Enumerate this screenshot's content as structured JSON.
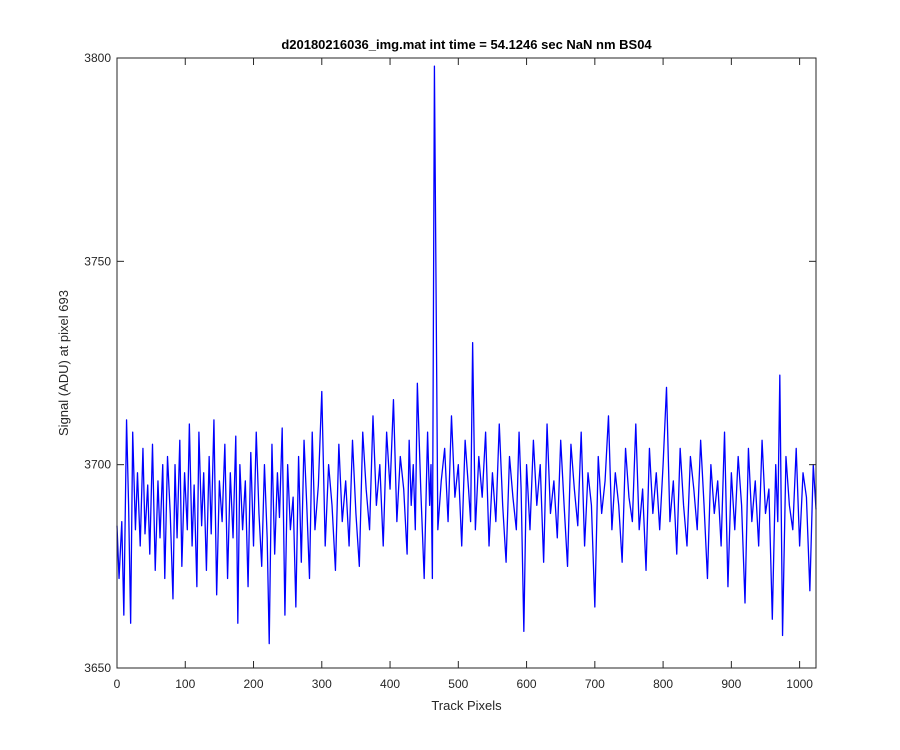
{
  "chart_data": {
    "type": "line",
    "title": "d20180216036_img.mat int time = 54.1246 sec  NaN nm BS04",
    "xlabel": "Track Pixels",
    "ylabel": "Signal (ADU) at pixel 693",
    "xlim": [
      0,
      1024
    ],
    "ylim": [
      3650,
      3800
    ],
    "xticks": [
      0,
      100,
      200,
      300,
      400,
      500,
      600,
      700,
      800,
      900,
      1000
    ],
    "yticks": [
      3650,
      3700,
      3750,
      3800
    ],
    "grid": false,
    "series": [
      {
        "color": "#0000ff",
        "x": [
          0,
          3,
          7,
          10,
          14,
          17,
          20,
          23,
          27,
          30,
          34,
          38,
          41,
          45,
          48,
          52,
          56,
          60,
          63,
          67,
          70,
          74,
          78,
          82,
          85,
          88,
          92,
          95,
          99,
          103,
          106,
          110,
          113,
          117,
          120,
          124,
          127,
          131,
          135,
          138,
          142,
          146,
          150,
          154,
          158,
          162,
          166,
          170,
          174,
          177,
          180,
          184,
          188,
          192,
          196,
          200,
          204,
          208,
          212,
          216,
          220,
          223,
          227,
          231,
          235,
          238,
          242,
          246,
          250,
          254,
          258,
          262,
          266,
          270,
          274,
          278,
          282,
          286,
          290,
          295,
          300,
          305,
          310,
          315,
          320,
          325,
          330,
          335,
          340,
          345,
          350,
          355,
          360,
          365,
          370,
          375,
          380,
          385,
          390,
          395,
          400,
          405,
          410,
          415,
          420,
          425,
          428,
          431,
          434,
          437,
          440,
          445,
          450,
          455,
          458,
          460,
          462,
          465,
          470,
          475,
          480,
          485,
          490,
          495,
          500,
          505,
          510,
          515,
          518,
          521,
          525,
          530,
          535,
          540,
          545,
          550,
          555,
          560,
          565,
          570,
          575,
          580,
          585,
          589,
          592,
          596,
          600,
          605,
          610,
          615,
          620,
          625,
          630,
          635,
          640,
          645,
          650,
          655,
          660,
          665,
          670,
          675,
          680,
          685,
          690,
          695,
          700,
          705,
          710,
          715,
          720,
          725,
          730,
          735,
          740,
          745,
          750,
          755,
          760,
          765,
          770,
          775,
          780,
          785,
          790,
          795,
          800,
          805,
          810,
          815,
          820,
          825,
          830,
          835,
          840,
          845,
          850,
          855,
          860,
          865,
          870,
          875,
          880,
          885,
          890,
          895,
          900,
          905,
          910,
          915,
          920,
          925,
          930,
          935,
          940,
          945,
          950,
          955,
          960,
          965,
          968,
          971,
          975,
          980,
          985,
          990,
          995,
          1000,
          1005,
          1010,
          1015,
          1020,
          1024
        ],
        "y": [
          3685,
          3672,
          3686,
          3663,
          3711,
          3690,
          3661,
          3708,
          3684,
          3698,
          3680,
          3704,
          3683,
          3695,
          3678,
          3705,
          3674,
          3696,
          3682,
          3700,
          3672,
          3702,
          3688,
          3667,
          3700,
          3682,
          3706,
          3675,
          3698,
          3684,
          3710,
          3680,
          3695,
          3670,
          3708,
          3685,
          3698,
          3674,
          3702,
          3683,
          3711,
          3668,
          3696,
          3686,
          3705,
          3672,
          3698,
          3682,
          3707,
          3661,
          3700,
          3684,
          3696,
          3670,
          3703,
          3680,
          3708,
          3688,
          3675,
          3700,
          3682,
          3656,
          3705,
          3678,
          3698,
          3687,
          3709,
          3663,
          3700,
          3684,
          3692,
          3665,
          3702,
          3676,
          3706,
          3690,
          3672,
          3708,
          3684,
          3695,
          3718,
          3680,
          3700,
          3690,
          3674,
          3705,
          3686,
          3696,
          3680,
          3706,
          3688,
          3675,
          3708,
          3694,
          3684,
          3712,
          3690,
          3700,
          3680,
          3708,
          3694,
          3716,
          3686,
          3702,
          3694,
          3678,
          3706,
          3690,
          3700,
          3684,
          3720,
          3694,
          3672,
          3708,
          3690,
          3700,
          3672,
          3798,
          3684,
          3696,
          3704,
          3686,
          3712,
          3692,
          3700,
          3680,
          3706,
          3694,
          3686,
          3730,
          3684,
          3702,
          3692,
          3708,
          3680,
          3698,
          3686,
          3710,
          3690,
          3676,
          3702,
          3692,
          3684,
          3708,
          3694,
          3659,
          3700,
          3684,
          3706,
          3690,
          3700,
          3676,
          3710,
          3688,
          3696,
          3682,
          3706,
          3690,
          3675,
          3705,
          3694,
          3685,
          3708,
          3680,
          3698,
          3690,
          3665,
          3702,
          3688,
          3696,
          3712,
          3684,
          3698,
          3690,
          3676,
          3704,
          3692,
          3686,
          3710,
          3684,
          3694,
          3674,
          3704,
          3688,
          3698,
          3684,
          3700,
          3719,
          3686,
          3696,
          3678,
          3704,
          3690,
          3680,
          3702,
          3694,
          3684,
          3706,
          3690,
          3672,
          3700,
          3688,
          3696,
          3680,
          3708,
          3670,
          3698,
          3684,
          3702,
          3690,
          3666,
          3704,
          3686,
          3696,
          3680,
          3706,
          3688,
          3694,
          3662,
          3700,
          3686,
          3722,
          3658,
          3702,
          3690,
          3684,
          3704,
          3680,
          3698,
          3692,
          3669,
          3700,
          3689
        ]
      }
    ]
  }
}
